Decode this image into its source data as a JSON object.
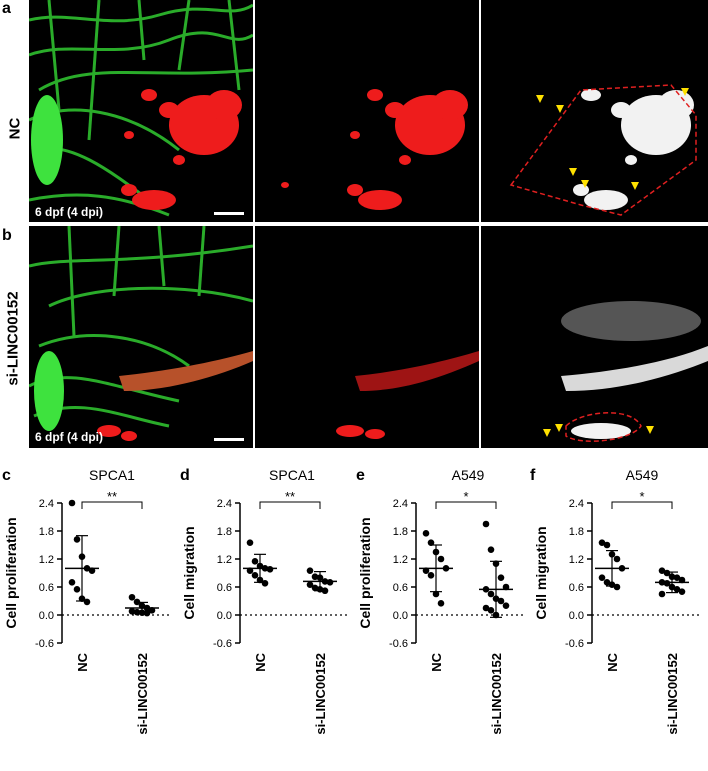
{
  "row_a": {
    "letter": "a",
    "label": "NC",
    "caption": "6 dpf (4 dpi)"
  },
  "row_b": {
    "letter": "b",
    "label": "si-LINC00152",
    "caption": "6 dpf (4 dpi)"
  },
  "chart_data": [
    {
      "letter": "c",
      "title": "SPCA1",
      "type": "scatter",
      "categories": [
        "NC",
        "si-LINC00152"
      ],
      "ylabel": "Cell proliferation",
      "ylim": [
        -0.6,
        2.4
      ],
      "yticks": [
        "2.4",
        "1.8",
        "1.2",
        "0.6",
        "0.0",
        "-0.6"
      ],
      "significance": "**",
      "series": [
        {
          "values": [
            2.4,
            1.62,
            1.25,
            1.0,
            0.95,
            0.7,
            0.55,
            0.35,
            0.28
          ]
        },
        {
          "values": [
            0.38,
            0.28,
            0.2,
            0.15,
            0.1,
            0.08,
            0.06,
            0.05,
            0.04
          ]
        }
      ],
      "means": [
        1.0,
        0.15
      ],
      "sd": [
        [
          0.3,
          1.7
        ],
        [
          0.05,
          0.27
        ]
      ]
    },
    {
      "letter": "d",
      "title": "SPCA1",
      "type": "scatter",
      "categories": [
        "NC",
        "si-LINC00152"
      ],
      "ylabel": "Cell migration",
      "ylim": [
        -0.6,
        2.4
      ],
      "yticks": [
        "2.4",
        "1.8",
        "1.2",
        "0.6",
        "0.0",
        "-0.6"
      ],
      "significance": "**",
      "series": [
        {
          "values": [
            1.55,
            1.15,
            1.05,
            1.0,
            0.98,
            0.95,
            0.85,
            0.75,
            0.68
          ]
        },
        {
          "values": [
            0.95,
            0.82,
            0.8,
            0.72,
            0.7,
            0.65,
            0.58,
            0.55,
            0.52
          ]
        }
      ],
      "means": [
        1.0,
        0.72
      ],
      "sd": [
        [
          0.7,
          1.3
        ],
        [
          0.52,
          0.93
        ]
      ]
    },
    {
      "letter": "e",
      "title": "A549",
      "type": "scatter",
      "categories": [
        "NC",
        "si-LINC00152"
      ],
      "ylabel": "Cell proliferation",
      "ylim": [
        -0.6,
        2.4
      ],
      "yticks": [
        "2.4",
        "1.8",
        "1.2",
        "0.6",
        "0.0",
        "-0.6"
      ],
      "significance": "*",
      "series": [
        {
          "values": [
            1.75,
            1.55,
            1.35,
            1.2,
            1.0,
            0.95,
            0.85,
            0.45,
            0.25
          ]
        },
        {
          "values": [
            1.95,
            1.4,
            1.1,
            0.8,
            0.6,
            0.55,
            0.45,
            0.35,
            0.3,
            0.2,
            0.15,
            0.1,
            0.0
          ]
        }
      ],
      "means": [
        1.0,
        0.55
      ],
      "sd": [
        [
          0.5,
          1.5
        ],
        [
          -0.05,
          1.15
        ]
      ]
    },
    {
      "letter": "f",
      "title": "A549",
      "type": "scatter",
      "categories": [
        "NC",
        "si-LINC00152"
      ],
      "ylabel": "Cell migration",
      "ylim": [
        -0.6,
        2.4
      ],
      "yticks": [
        "2.4",
        "1.8",
        "1.2",
        "0.6",
        "0.0",
        "-0.6"
      ],
      "significance": "*",
      "series": [
        {
          "values": [
            1.55,
            1.5,
            1.3,
            1.2,
            1.0,
            0.8,
            0.7,
            0.65,
            0.6
          ]
        },
        {
          "values": [
            0.95,
            0.9,
            0.82,
            0.8,
            0.75,
            0.7,
            0.68,
            0.6,
            0.55,
            0.5,
            0.45
          ]
        }
      ],
      "means": [
        1.0,
        0.7
      ],
      "sd": [
        [
          0.62,
          1.38
        ],
        [
          0.48,
          0.92
        ]
      ]
    }
  ]
}
